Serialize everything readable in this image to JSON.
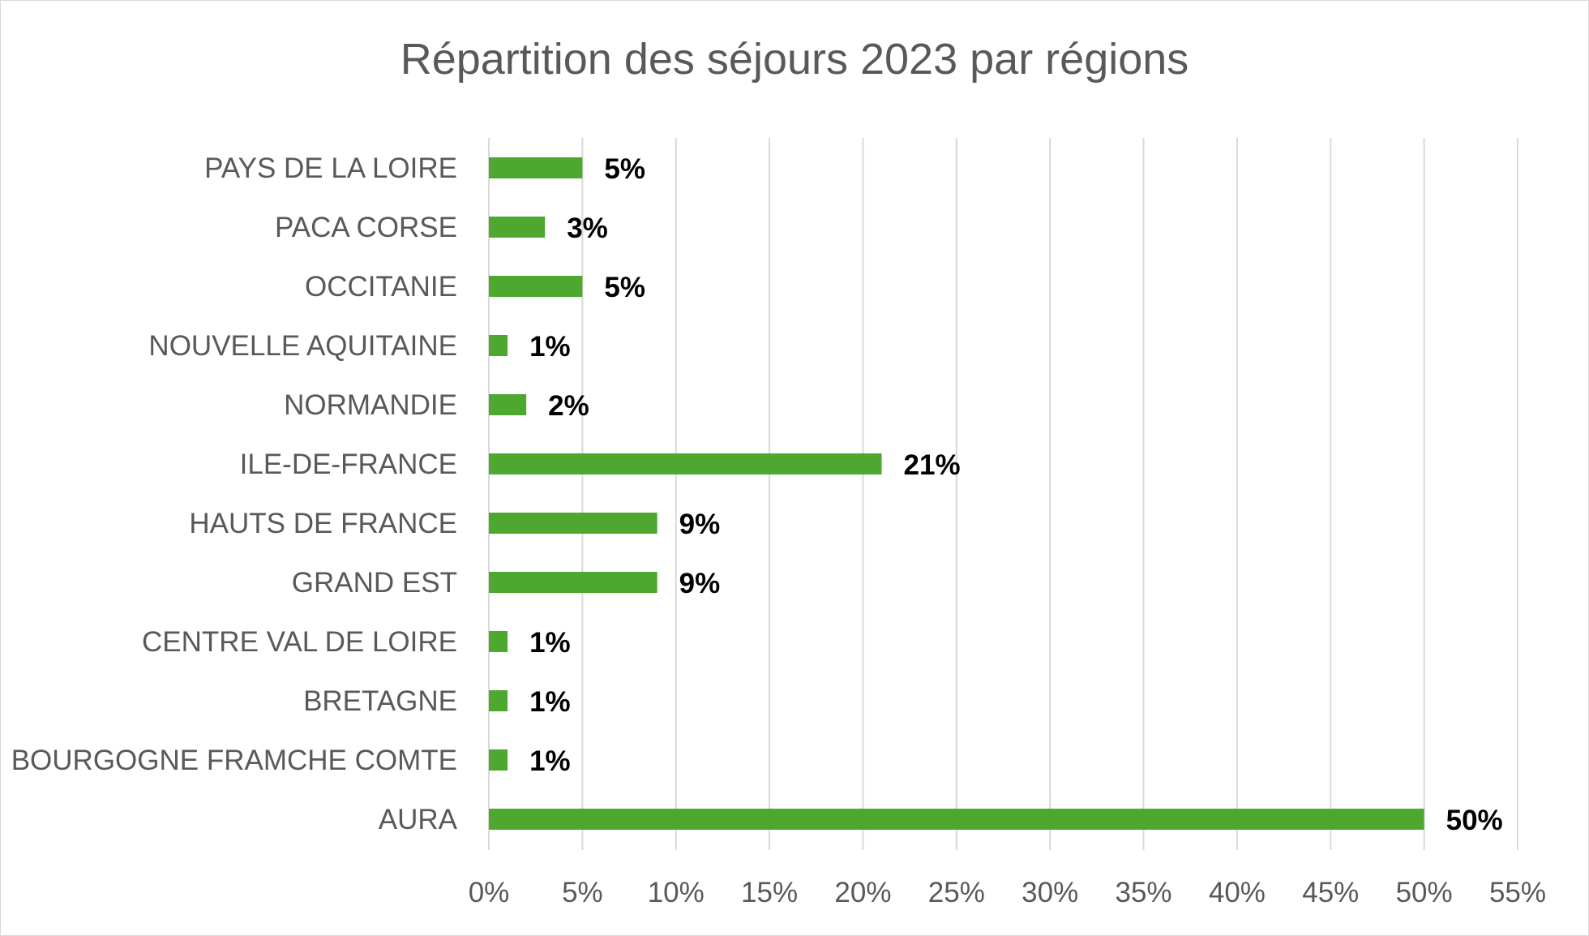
{
  "chart_data": {
    "type": "bar",
    "orientation": "horizontal",
    "title": "Répartition des séjours 2023 par régions",
    "categories": [
      "PAYS DE LA LOIRE",
      "PACA CORSE",
      "OCCITANIE",
      "NOUVELLE AQUITAINE",
      "NORMANDIE",
      "ILE-DE-FRANCE",
      "HAUTS DE FRANCE",
      "GRAND EST",
      "CENTRE VAL DE LOIRE",
      "BRETAGNE",
      "BOURGOGNE FRAMCHE COMTE",
      "AURA"
    ],
    "values": [
      5,
      3,
      5,
      1,
      2,
      21,
      9,
      9,
      1,
      1,
      1,
      50
    ],
    "data_labels": [
      "5%",
      "3%",
      "5%",
      "1%",
      "2%",
      "21%",
      "9%",
      "9%",
      "1%",
      "1%",
      "1%",
      "50%"
    ],
    "xlim": [
      0,
      55
    ],
    "x_ticks": [
      0,
      5,
      10,
      15,
      20,
      25,
      30,
      35,
      40,
      45,
      50,
      55
    ],
    "x_tick_labels": [
      "0%",
      "5%",
      "10%",
      "15%",
      "20%",
      "25%",
      "30%",
      "35%",
      "40%",
      "45%",
      "50%",
      "55%"
    ],
    "xlabel": "",
    "ylabel": "",
    "grid": "vertical",
    "legend": "none",
    "colors": {
      "bar": "#4ea72e",
      "grid": "#d9d9d9",
      "text": "#595959",
      "data_label": "#000000"
    }
  }
}
